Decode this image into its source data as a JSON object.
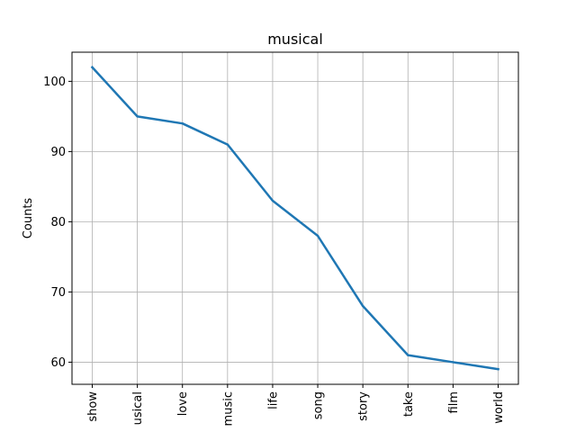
{
  "chart_data": {
    "type": "line",
    "title": "musical",
    "xlabel": "",
    "ylabel": "Counts",
    "categories": [
      "show",
      "usical",
      "love",
      "music",
      "life",
      "song",
      "story",
      "take",
      "film",
      "world"
    ],
    "values": [
      102,
      95,
      94,
      91,
      83,
      78,
      68,
      61,
      60,
      59
    ],
    "ylim": [
      56.85,
      104.15
    ],
    "yticks": [
      60,
      70,
      80,
      90,
      100
    ],
    "grid": true,
    "line_color": "#1f77b4"
  }
}
